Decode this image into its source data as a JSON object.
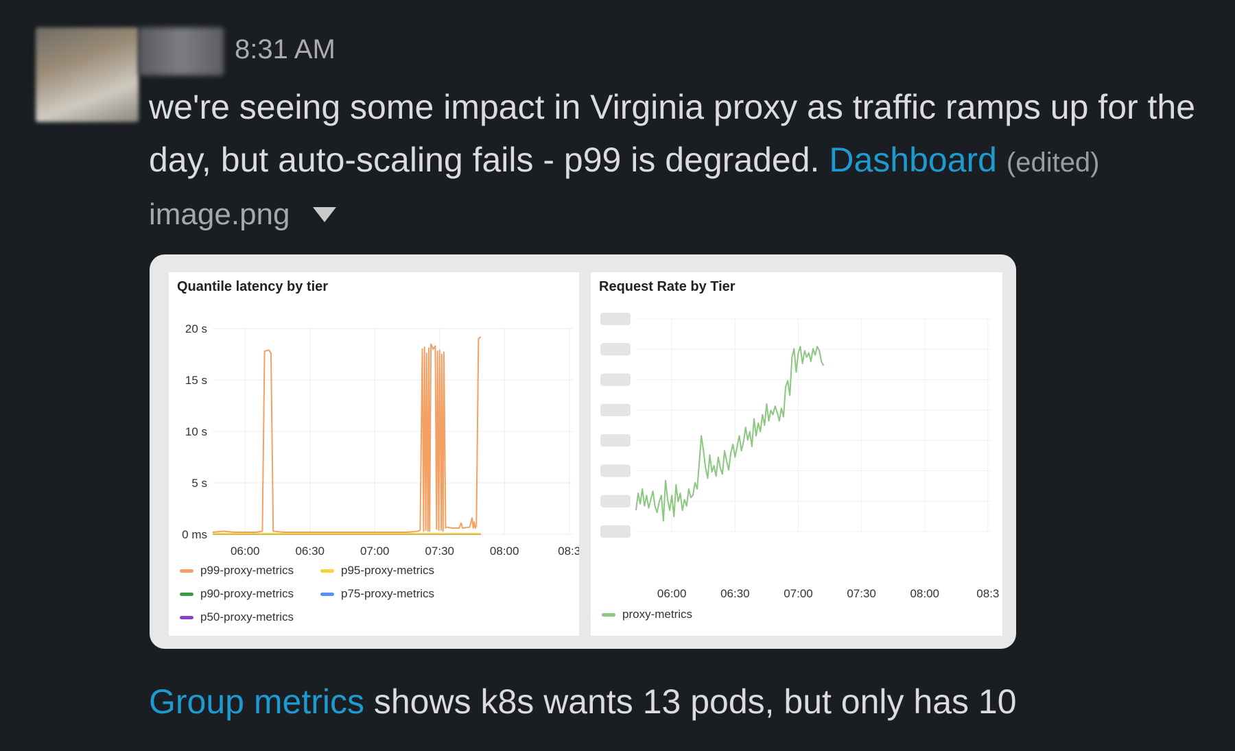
{
  "message": {
    "timestamp": "8:31 AM",
    "text": "we're seeing some impact in Virginia proxy as traffic ramps up for the day, but auto-scaling fails - p99 is degraded.",
    "link_label": "Dashboard",
    "edited_label": "(edited)"
  },
  "attachment": {
    "filename": "image.png"
  },
  "followup": {
    "link_label": "Group metrics",
    "text": "shows k8s wants 13 pods, but only has 10"
  },
  "colors": {
    "p99": "#f2a063",
    "p95": "#f7d23a",
    "p90": "#3f9a45",
    "p75": "#5a8ff5",
    "p50": "#8a3fd1",
    "proxy": "#8cc781",
    "link": "#1d9bd1"
  },
  "chart_data": [
    {
      "type": "line",
      "title": "Quantile latency by tier",
      "y_tick_labels": [
        "0 ms",
        "5 s",
        "10 s",
        "15 s",
        "20 s"
      ],
      "y_ticks": [
        0,
        5,
        10,
        15,
        20
      ],
      "ylim": [
        0,
        20
      ],
      "x_tick_labels": [
        "06:00",
        "06:30",
        "07:00",
        "07:30",
        "08:00",
        "08:3"
      ],
      "x_ticks": [
        360,
        390,
        420,
        450,
        480,
        510
      ],
      "xlim": [
        345,
        512
      ],
      "grid": true,
      "legend": "bottom",
      "series": [
        {
          "name": "p99-proxy-metrics",
          "color_key": "p99",
          "points": [
            [
              345,
              0.2
            ],
            [
              350,
              0.3
            ],
            [
              355,
              0.2
            ],
            [
              360,
              0.2
            ],
            [
              365,
              0.2
            ],
            [
              368,
              0.3
            ],
            [
              369,
              17.8
            ],
            [
              371,
              17.9
            ],
            [
              372,
              17.6
            ],
            [
              373,
              0.3
            ],
            [
              378,
              0.2
            ],
            [
              385,
              0.2
            ],
            [
              395,
              0.2
            ],
            [
              405,
              0.2
            ],
            [
              415,
              0.2
            ],
            [
              425,
              0.2
            ],
            [
              435,
              0.2
            ],
            [
              440,
              0.3
            ],
            [
              441,
              0.4
            ],
            [
              442,
              18.0
            ],
            [
              442.6,
              0.3
            ],
            [
              443,
              18.2
            ],
            [
              443.6,
              0.4
            ],
            [
              444,
              17.6
            ],
            [
              444.6,
              0.3
            ],
            [
              445,
              18.1
            ],
            [
              445.4,
              0.3
            ],
            [
              446,
              18.5
            ],
            [
              447,
              18.0
            ],
            [
              448,
              18.3
            ],
            [
              448.6,
              0.5
            ],
            [
              449,
              17.8
            ],
            [
              449.6,
              0.4
            ],
            [
              450,
              17.9
            ],
            [
              450.8,
              0.4
            ],
            [
              451,
              17.5
            ],
            [
              451.6,
              0.3
            ],
            [
              452,
              17.7
            ],
            [
              452.8,
              0.6
            ],
            [
              453,
              0.7
            ],
            [
              456,
              0.6
            ],
            [
              459,
              0.6
            ],
            [
              460,
              1.1
            ],
            [
              460.6,
              0.6
            ],
            [
              464,
              0.7
            ],
            [
              465,
              1.6
            ],
            [
              465.6,
              0.6
            ],
            [
              466,
              1.2
            ],
            [
              466.5,
              0.6
            ],
            [
              467,
              0.8
            ],
            [
              468,
              19.0
            ],
            [
              469,
              19.2
            ]
          ]
        },
        {
          "name": "p95-proxy-metrics",
          "color_key": "p95",
          "points": [
            [
              345,
              0.05
            ],
            [
              469,
              0.05
            ]
          ]
        },
        {
          "name": "p90-proxy-metrics",
          "color_key": "p90",
          "points": [
            [
              345,
              0.04
            ],
            [
              469,
              0.04
            ]
          ]
        },
        {
          "name": "p75-proxy-metrics",
          "color_key": "p75",
          "points": [
            [
              345,
              0.03
            ],
            [
              469,
              0.03
            ]
          ]
        },
        {
          "name": "p50-proxy-metrics",
          "color_key": "p50",
          "points": [
            [
              345,
              0.02
            ],
            [
              469,
              0.02
            ]
          ]
        }
      ]
    },
    {
      "type": "line",
      "title": "Request Rate by Tier",
      "y_axis_labels": "obscured",
      "ylim": [
        0,
        100
      ],
      "x_tick_labels": [
        "06:00",
        "06:30",
        "07:00",
        "07:30",
        "08:00",
        "08:3"
      ],
      "x_ticks": [
        360,
        390,
        420,
        450,
        480,
        510
      ],
      "xlim": [
        343,
        512
      ],
      "grid": true,
      "legend": "bottom",
      "series": [
        {
          "name": "proxy-metrics",
          "color_key": "proxy",
          "points": [
            [
              343,
              10
            ],
            [
              344,
              18
            ],
            [
              345,
              13
            ],
            [
              346,
              20
            ],
            [
              347,
              12
            ],
            [
              348,
              17
            ],
            [
              349,
              11
            ],
            [
              350,
              15
            ],
            [
              351,
              19
            ],
            [
              352,
              12
            ],
            [
              353,
              9
            ],
            [
              354,
              14
            ],
            [
              355,
              17
            ],
            [
              356,
              5
            ],
            [
              357,
              24
            ],
            [
              358,
              15
            ],
            [
              359,
              10
            ],
            [
              360,
              17
            ],
            [
              361,
              7
            ],
            [
              362,
              22
            ],
            [
              363,
              14
            ],
            [
              364,
              18
            ],
            [
              365,
              10
            ],
            [
              366,
              15
            ],
            [
              367,
              12
            ],
            [
              368,
              20
            ],
            [
              369,
              16
            ],
            [
              370,
              17
            ],
            [
              371,
              23
            ],
            [
              372,
              20
            ],
            [
              373,
              32
            ],
            [
              374,
              45
            ],
            [
              375,
              38
            ],
            [
              376,
              30
            ],
            [
              377,
              25
            ],
            [
              378,
              36
            ],
            [
              379,
              28
            ],
            [
              380,
              31
            ],
            [
              381,
              26
            ],
            [
              382,
              35
            ],
            [
              383,
              30
            ],
            [
              384,
              27
            ],
            [
              385,
              38
            ],
            [
              386,
              33
            ],
            [
              387,
              29
            ],
            [
              388,
              37
            ],
            [
              389,
              41
            ],
            [
              390,
              35
            ],
            [
              391,
              40
            ],
            [
              392,
              45
            ],
            [
              393,
              38
            ],
            [
              394,
              42
            ],
            [
              395,
              49
            ],
            [
              396,
              43
            ],
            [
              397,
              47
            ],
            [
              398,
              40
            ],
            [
              399,
              53
            ],
            [
              400,
              45
            ],
            [
              401,
              51
            ],
            [
              402,
              47
            ],
            [
              403,
              55
            ],
            [
              404,
              50
            ],
            [
              405,
              60
            ],
            [
              406,
              52
            ],
            [
              407,
              57
            ],
            [
              408,
              55
            ],
            [
              409,
              59
            ],
            [
              410,
              56
            ],
            [
              411,
              52
            ],
            [
              412,
              58
            ],
            [
              413,
              54
            ],
            [
              414,
              68
            ],
            [
              415,
              71
            ],
            [
              416,
              64
            ],
            [
              417,
              82
            ],
            [
              418,
              86
            ],
            [
              419,
              75
            ],
            [
              420,
              84
            ],
            [
              421,
              87
            ],
            [
              422,
              79
            ],
            [
              423,
              85
            ],
            [
              424,
              82
            ],
            [
              425,
              84
            ],
            [
              426,
              80
            ],
            [
              427,
              86
            ],
            [
              428,
              83
            ],
            [
              429,
              87
            ],
            [
              430,
              85
            ],
            [
              431,
              80
            ],
            [
              432,
              78
            ]
          ]
        }
      ]
    }
  ]
}
